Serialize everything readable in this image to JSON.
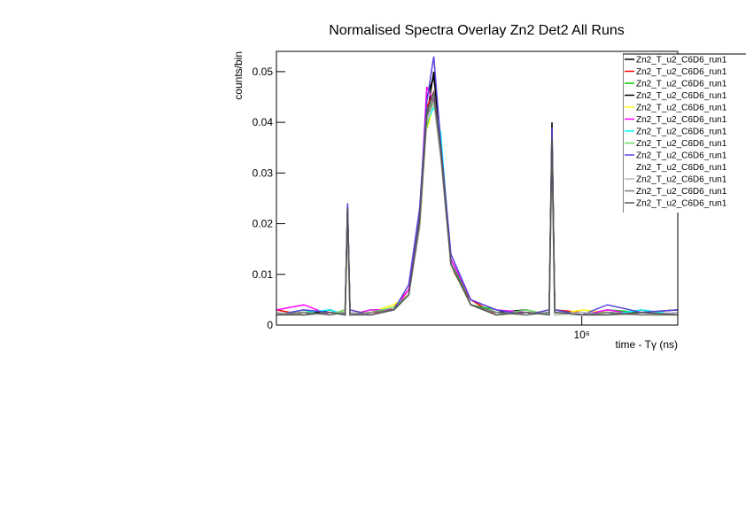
{
  "chart_data": {
    "type": "line",
    "title": "Normalised Spectra Overlay Zn2 Det2 All Runs",
    "x_label": "time - Tγ (ns)",
    "y_label": "counts/bin",
    "xlog": true,
    "xlim": [
      560000,
      1200000
    ],
    "xticks": [
      {
        "value": 1000000,
        "label": "10⁶"
      }
    ],
    "ylim": [
      0,
      0.054
    ],
    "yticks": [
      0,
      0.01,
      0.02,
      0.03,
      0.04,
      0.05
    ],
    "x": [
      560000,
      590000,
      620000,
      638000,
      641000,
      644000,
      670000,
      700000,
      720000,
      735000,
      745000,
      755000,
      765000,
      780000,
      810000,
      850000,
      900000,
      940000,
      945000,
      950000,
      1000000,
      1050000,
      1120000,
      1200000
    ],
    "series": [
      {
        "name": "Zn2_T_u2_C6D6_run1",
        "color": "#000000",
        "values": [
          0.002,
          0.0025,
          0.002,
          0.003,
          0.023,
          0.002,
          0.0025,
          0.003,
          0.006,
          0.021,
          0.041,
          0.05,
          0.034,
          0.012,
          0.004,
          0.0025,
          0.002,
          0.003,
          0.04,
          0.003,
          0.002,
          0.0025,
          0.002,
          0.002
        ]
      },
      {
        "name": "Zn2_T_u2_C6D6_run1",
        "color": "#ff0000",
        "values": [
          0.003,
          0.002,
          0.0025,
          0.002,
          0.022,
          0.003,
          0.002,
          0.0035,
          0.007,
          0.019,
          0.043,
          0.046,
          0.036,
          0.011,
          0.005,
          0.002,
          0.0025,
          0.002,
          0.036,
          0.003,
          0.0025,
          0.002,
          0.003,
          0.002
        ]
      },
      {
        "name": "Zn2_T_u2_C6D6_run1",
        "color": "#00cc00",
        "values": [
          0.002,
          0.003,
          0.002,
          0.0025,
          0.021,
          0.002,
          0.003,
          0.003,
          0.005,
          0.022,
          0.039,
          0.045,
          0.033,
          0.013,
          0.004,
          0.003,
          0.002,
          0.0025,
          0.035,
          0.002,
          0.002,
          0.003,
          0.0025,
          0.002
        ]
      },
      {
        "name": "Zn2_T_u2_C6D6_run1",
        "color": "#000000",
        "values": [
          0.0025,
          0.002,
          0.003,
          0.002,
          0.024,
          0.0025,
          0.002,
          0.003,
          0.006,
          0.02,
          0.045,
          0.049,
          0.037,
          0.012,
          0.004,
          0.0025,
          0.003,
          0.002,
          0.038,
          0.003,
          0.002,
          0.002,
          0.0025,
          0.003
        ]
      },
      {
        "name": "Zn2_T_u2_C6D6_run1",
        "color": "#ffff00",
        "values": [
          0.002,
          0.0025,
          0.002,
          0.003,
          0.02,
          0.002,
          0.0025,
          0.004,
          0.006,
          0.018,
          0.038,
          0.044,
          0.032,
          0.011,
          0.004,
          0.002,
          0.002,
          0.003,
          0.033,
          0.002,
          0.003,
          0.0025,
          0.002,
          0.002
        ]
      },
      {
        "name": "Zn2_T_u2_C6D6_run1",
        "color": "#ff00ff",
        "values": [
          0.003,
          0.004,
          0.002,
          0.0025,
          0.023,
          0.002,
          0.003,
          0.003,
          0.007,
          0.021,
          0.047,
          0.044,
          0.035,
          0.013,
          0.005,
          0.003,
          0.0025,
          0.002,
          0.037,
          0.003,
          0.002,
          0.003,
          0.002,
          0.0025
        ]
      },
      {
        "name": "Zn2_T_u2_C6D6_run1",
        "color": "#00ffff",
        "values": [
          0.002,
          0.0025,
          0.003,
          0.002,
          0.021,
          0.0025,
          0.002,
          0.003,
          0.006,
          0.02,
          0.04,
          0.043,
          0.038,
          0.012,
          0.004,
          0.0025,
          0.002,
          0.0025,
          0.034,
          0.002,
          0.0025,
          0.002,
          0.003,
          0.002
        ]
      },
      {
        "name": "Zn2_T_u2_C6D6_run1",
        "color": "#66dd66",
        "values": [
          0.0025,
          0.002,
          0.002,
          0.003,
          0.022,
          0.002,
          0.0025,
          0.0035,
          0.006,
          0.019,
          0.042,
          0.046,
          0.034,
          0.012,
          0.004,
          0.002,
          0.003,
          0.002,
          0.036,
          0.003,
          0.002,
          0.0025,
          0.002,
          0.002
        ]
      },
      {
        "name": "Zn2_T_u2_C6D6_run1",
        "color": "#5544dd",
        "values": [
          0.002,
          0.003,
          0.0025,
          0.002,
          0.024,
          0.003,
          0.002,
          0.003,
          0.008,
          0.023,
          0.044,
          0.053,
          0.036,
          0.014,
          0.005,
          0.003,
          0.002,
          0.003,
          0.039,
          0.003,
          0.002,
          0.004,
          0.0025,
          0.003
        ]
      },
      {
        "name": "Zn2_T_u2_C6D6_run1",
        "color": "#ffffff",
        "values": [
          0.002,
          0.002,
          0.002,
          0.0025,
          0.02,
          0.002,
          0.002,
          0.003,
          0.005,
          0.018,
          0.038,
          0.042,
          0.031,
          0.011,
          0.004,
          0.002,
          0.002,
          0.002,
          0.032,
          0.002,
          0.002,
          0.002,
          0.002,
          0.002
        ]
      },
      {
        "name": "Zn2_T_u2_C6D6_run1",
        "color": "#bbbbbb",
        "values": [
          0.0025,
          0.002,
          0.0025,
          0.002,
          0.021,
          0.0025,
          0.002,
          0.003,
          0.006,
          0.019,
          0.04,
          0.044,
          0.033,
          0.012,
          0.004,
          0.0025,
          0.002,
          0.0025,
          0.034,
          0.002,
          0.0025,
          0.002,
          0.002,
          0.0025
        ]
      },
      {
        "name": "Zn2_T_u2_C6D6_run1",
        "color": "#777777",
        "values": [
          0.002,
          0.0025,
          0.002,
          0.0025,
          0.022,
          0.002,
          0.0025,
          0.003,
          0.006,
          0.02,
          0.041,
          0.045,
          0.034,
          0.012,
          0.004,
          0.0025,
          0.002,
          0.0025,
          0.036,
          0.0025,
          0.002,
          0.0025,
          0.002,
          0.002
        ]
      },
      {
        "name": "Zn2_T_u2_C6D6_run1",
        "color": "#555555",
        "values": [
          0.002,
          0.002,
          0.0025,
          0.002,
          0.023,
          0.002,
          0.002,
          0.003,
          0.006,
          0.021,
          0.042,
          0.046,
          0.035,
          0.012,
          0.004,
          0.002,
          0.0025,
          0.002,
          0.037,
          0.0025,
          0.002,
          0.002,
          0.0025,
          0.002
        ]
      }
    ]
  }
}
